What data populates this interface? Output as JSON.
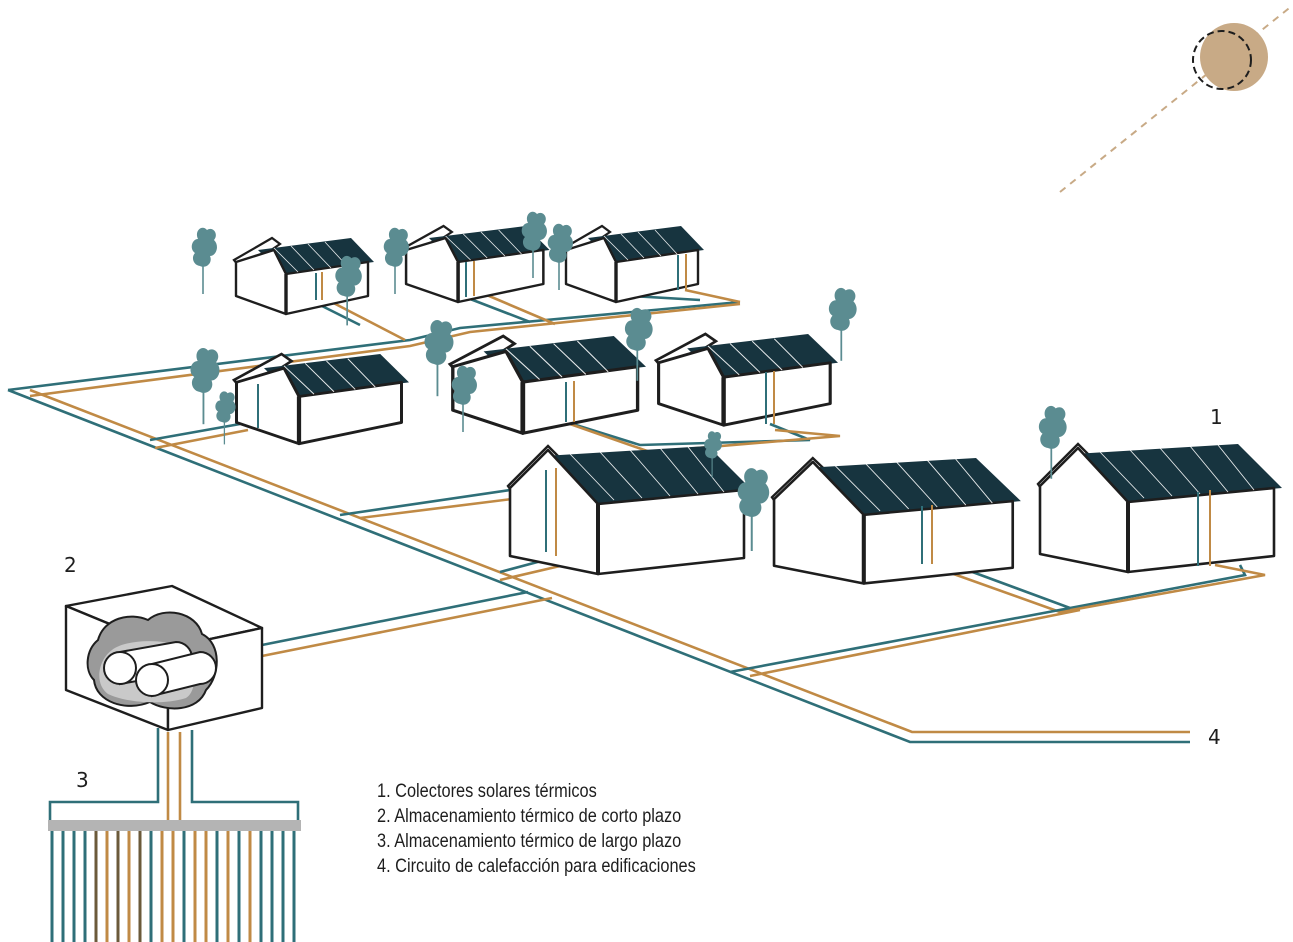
{
  "labels": {
    "collectors_number": "1",
    "short_term_storage_number": "2",
    "long_term_storage_number": "3",
    "heating_circuit_number": "4"
  },
  "legend": {
    "items": [
      "1. Colectores solares térmicos",
      "2. Almacenamiento térmico de corto plazo",
      "3. Almacenamiento térmico de largo plazo",
      "4. Circuito de calefacción para edificaciones"
    ]
  },
  "colors": {
    "supply_pipe": "#c08a45",
    "return_pipe": "#2f6f78",
    "solar_panel": "#17343f",
    "tree": "#5b8c91",
    "sun": "#c8aa86",
    "outline": "#1e1e1e"
  }
}
